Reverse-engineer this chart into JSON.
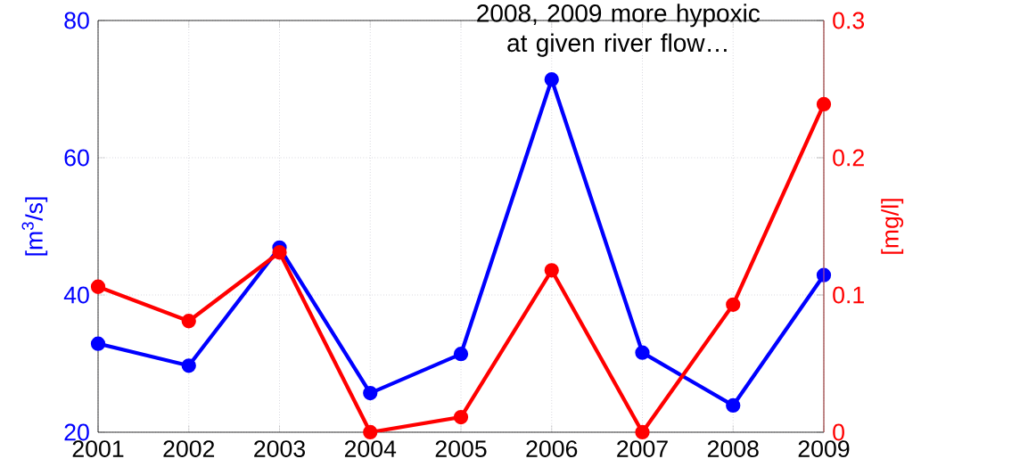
{
  "chart_data": {
    "type": "line",
    "xlim": [
      2001,
      2009
    ],
    "xticks": [
      2001,
      2002,
      2003,
      2004,
      2005,
      2006,
      2007,
      2008,
      2009
    ],
    "ylim": [
      20,
      80
    ],
    "yticks": [
      20,
      40,
      60,
      80
    ],
    "y2lim": [
      0,
      0.3
    ],
    "y2ticks": [
      0,
      0.1,
      0.2,
      0.3
    ],
    "ylabel": "[m$^{3}$/s]",
    "y2label": "[mg/l]",
    "grid": true,
    "marker": "circle",
    "line_style": "solid",
    "annotations": [
      "2008, 2009 more hypoxic at given river flow…"
    ],
    "x": [
      2001,
      2002,
      2003,
      2004,
      2005,
      2006,
      2007,
      2008,
      2009
    ],
    "series": [
      {
        "color": "#0000ff",
        "values": [
          32.9,
          29.7,
          46.9,
          25.7,
          31.4,
          71.4,
          31.6,
          23.9,
          42.9
        ]
      },
      {
        "color": "#ff0000",
        "axis": "y2",
        "values": [
          0.106,
          0.081,
          0.131,
          0,
          0.011,
          0.118,
          0,
          0.093,
          0.239
        ]
      }
    ]
  }
}
